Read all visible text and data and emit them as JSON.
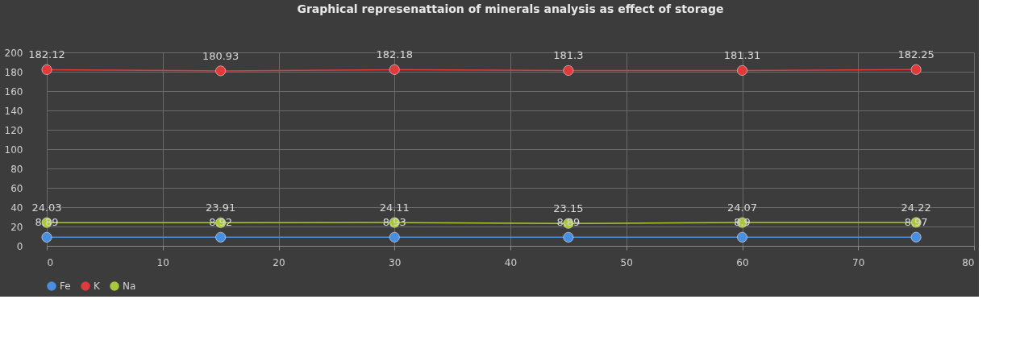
{
  "chart_data": {
    "type": "line",
    "title": "Graphical represenattaion of minerals analysis as effect of storage",
    "x": [
      0,
      15,
      30,
      45,
      60,
      75
    ],
    "series": [
      {
        "name": "Fe",
        "color": "#4a8ee0",
        "values": [
          8.89,
          8.92,
          8.93,
          8.89,
          8.9,
          8.97
        ]
      },
      {
        "name": "K",
        "color": "#e03a3a",
        "values": [
          182.12,
          180.93,
          182.18,
          181.3,
          181.31,
          182.25
        ]
      },
      {
        "name": "Na",
        "color": "#a8c83a",
        "values": [
          24.03,
          23.91,
          24.11,
          23.15,
          24.07,
          24.22
        ]
      }
    ],
    "xlim": [
      0,
      80
    ],
    "xticks": [
      0,
      10,
      20,
      30,
      40,
      50,
      60,
      70,
      80
    ],
    "ylim": [
      0,
      200
    ],
    "yticks": [
      0,
      20,
      40,
      60,
      80,
      100,
      120,
      140,
      160,
      180,
      200
    ],
    "grid": true,
    "legend": "bottom",
    "marker": "circle",
    "line_style": "solid",
    "data_labels": true
  }
}
